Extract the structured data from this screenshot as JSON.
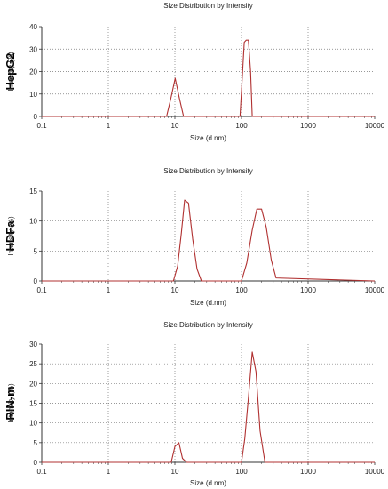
{
  "chart_data": [
    {
      "type": "line",
      "title": "Size Distribution by Intensity",
      "side_label": "HepG2",
      "xlabel": "Size (d.nm)",
      "ylabel": "Intensity (%)",
      "x_scale": "log",
      "xlim": [
        0.1,
        10000
      ],
      "x_ticks": [
        "0.1",
        "1",
        "10",
        "100",
        "1000",
        "10000"
      ],
      "ylim": [
        0,
        40
      ],
      "y_ticks": [
        0,
        10,
        20,
        30,
        40
      ],
      "grid": "dotted",
      "series_color": "#b03030",
      "x": [
        0.1,
        7.5,
        8.7,
        10.1,
        11.7,
        13.5,
        95,
        103,
        110,
        118,
        127,
        137,
        145,
        10000
      ],
      "y": [
        0,
        0,
        8,
        17,
        8,
        0,
        0,
        18,
        33,
        34,
        34,
        20,
        0,
        0
      ]
    },
    {
      "type": "line",
      "title": "Size Distribution by Intensity",
      "side_label": "HDFa",
      "xlabel": "Size (d.nm)",
      "ylabel": "Intensity (%)",
      "x_scale": "log",
      "xlim": [
        0.1,
        10000
      ],
      "x_ticks": [
        "0.1",
        "1",
        "10",
        "100",
        "1000",
        "10000"
      ],
      "ylim": [
        0,
        15
      ],
      "y_ticks": [
        0,
        5,
        10,
        15
      ],
      "grid": "dotted",
      "series_color": "#b03030",
      "x": [
        0.1,
        9.5,
        11,
        12.5,
        14,
        16,
        18.5,
        21.5,
        25,
        100,
        120,
        145,
        170,
        200,
        235,
        280,
        330,
        10000
      ],
      "y": [
        0,
        0,
        2.5,
        8,
        13.5,
        13,
        7,
        2,
        0,
        0,
        3,
        8.5,
        12,
        12,
        9,
        3.5,
        0.5,
        0
      ]
    },
    {
      "type": "line",
      "title": "Size Distribution by Intensity",
      "side_label": "RIN-m",
      "xlabel": "Size (d.nm)",
      "ylabel": "Intensity (%)",
      "x_scale": "log",
      "xlim": [
        0.1,
        10000
      ],
      "x_ticks": [
        "0.1",
        "1",
        "10",
        "100",
        "1000",
        "10000"
      ],
      "ylim": [
        0,
        30
      ],
      "y_ticks": [
        0,
        5,
        10,
        15,
        20,
        25,
        30
      ],
      "grid": "dotted",
      "series_color": "#b03030",
      "x": [
        0.1,
        8.8,
        10,
        11.5,
        13,
        15,
        100,
        112,
        128,
        145,
        165,
        190,
        225,
        10000
      ],
      "y": [
        0,
        0,
        4,
        5,
        1,
        0,
        0,
        6,
        17,
        28,
        23,
        8,
        0,
        0
      ]
    }
  ]
}
